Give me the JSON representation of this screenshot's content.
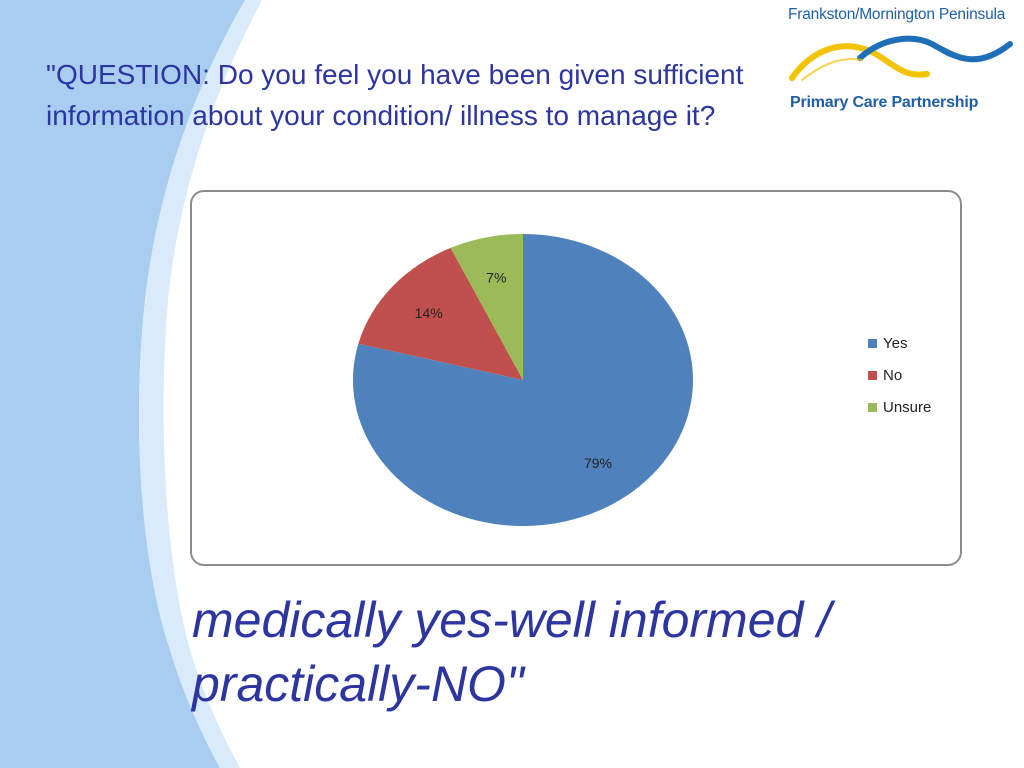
{
  "slide": {
    "question": "\"QUESTION: Do you feel you have been given sufficient information about your condition/ illness to manage it?",
    "caption_line1": "medically yes-well informed /",
    "caption_line2": "practically-NO\""
  },
  "logo": {
    "top_text": "Frankston/Mornington Peninsula",
    "bottom_text": "Primary Care Partnership",
    "colors": {
      "blue": "#1f6fb8",
      "yellow": "#f2c300",
      "text": "#1f5fa8"
    }
  },
  "chart_data": {
    "type": "pie",
    "categories": [
      "Yes",
      "No",
      "Unsure"
    ],
    "values": [
      79,
      14,
      7
    ],
    "labels": [
      "79%",
      "14%",
      "7%"
    ],
    "colors": [
      "#4f81bd",
      "#c0504d",
      "#9bbb59"
    ],
    "legend_position": "right",
    "title": ""
  },
  "colors": {
    "text_blue": "#2c35a0",
    "wave_blue": "#a8cdf0"
  }
}
